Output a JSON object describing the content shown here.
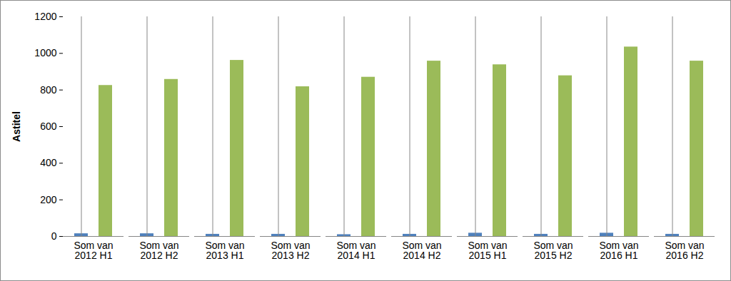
{
  "chart_data": {
    "type": "bar",
    "y_label": "Astitel",
    "categories": [
      "Som van 2012 H1",
      "Som van 2012 H2",
      "Som van 2013 H1",
      "Som van 2013 H2",
      "Som van 2014 H1",
      "Som van 2014 H2",
      "Som van 2015 H1",
      "Som van 2015 H2",
      "Som van 2016 H1",
      "Som van 2016 H2"
    ],
    "series": [
      {
        "color": "#4f81bd",
        "values": [
          15,
          15,
          12,
          12,
          10,
          12,
          18,
          12,
          18,
          12
        ]
      },
      {
        "color": "#9bbb59",
        "values": [
          825,
          858,
          962,
          818,
          870,
          958,
          938,
          878,
          1035,
          958
        ]
      }
    ],
    "ylim": [
      0,
      1200
    ],
    "yticks": [
      0,
      200,
      400,
      600,
      800,
      1000,
      1200
    ],
    "grid": false
  }
}
